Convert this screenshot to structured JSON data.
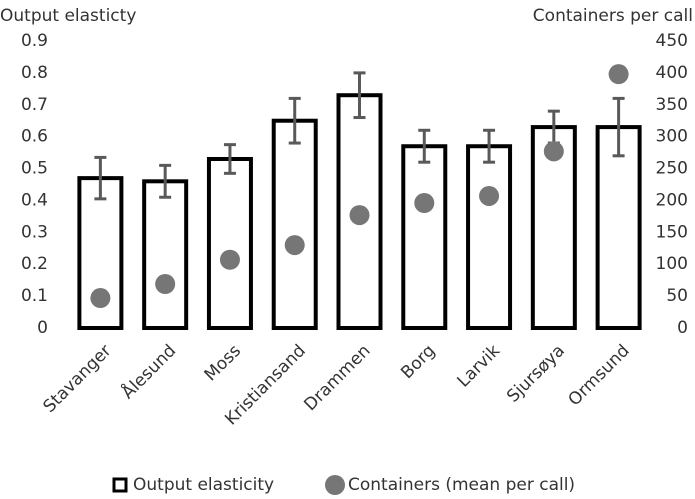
{
  "chart_data": {
    "type": "bar",
    "y_label": "Output elasticty",
    "y2_label": "Containers per call",
    "categories": [
      "Stavanger",
      "Ålesund",
      "Moss",
      "Kristiansand",
      "Drammen",
      "Borg",
      "Larvik",
      "Sjursøya",
      "Ormsund"
    ],
    "series": [
      {
        "name": "Output elasticity",
        "type": "bar",
        "color": "#000000",
        "fill": "#ffffff",
        "values": [
          0.47,
          0.46,
          0.53,
          0.65,
          0.73,
          0.57,
          0.57,
          0.63,
          0.63
        ],
        "errors": [
          0.065,
          0.05,
          0.045,
          0.07,
          0.07,
          0.05,
          0.05,
          0.05,
          0.09
        ],
        "error_color": "#595959"
      },
      {
        "name": "Containers (mean per call)",
        "type": "scatter",
        "axis": "y2",
        "color": "#767676",
        "values": [
          47,
          69,
          107,
          130,
          177,
          196,
          207,
          277,
          398
        ]
      }
    ],
    "ylim": [
      0,
      0.9
    ],
    "yticks": [
      0,
      0.1,
      0.2,
      0.3,
      0.4,
      0.5,
      0.6,
      0.7,
      0.8,
      0.9
    ],
    "y2lim": [
      0,
      450
    ],
    "y2ticks": [
      0,
      50,
      100,
      150,
      200,
      250,
      300,
      350,
      400,
      450
    ]
  }
}
